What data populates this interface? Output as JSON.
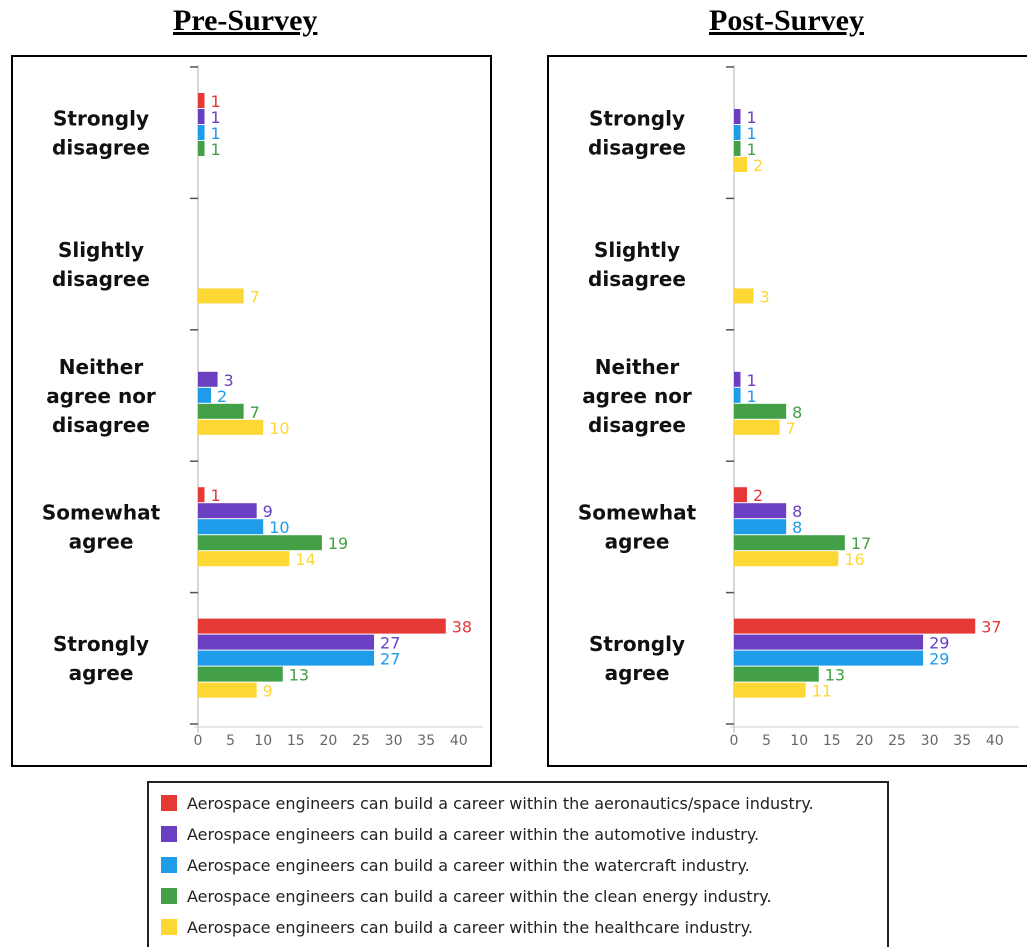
{
  "titles": {
    "pre": "Pre-Survey",
    "post": "Post-Survey"
  },
  "colors": [
    "#e53935",
    "#6a3fc1",
    "#1e9be9",
    "#43a047",
    "#fdd835"
  ],
  "legend": [
    "Aerospace engineers can build a career within the aeronautics/space industry.",
    "Aerospace engineers can build a career within the automotive industry.",
    "Aerospace engineers can build a career within the watercraft industry.",
    "Aerospace engineers can build a career within the clean energy industry.",
    "Aerospace engineers can build a career within the healthcare industry."
  ],
  "chart_data": [
    {
      "type": "bar",
      "orientation": "horizontal",
      "title": "Pre-Survey",
      "categories": [
        [
          "Strongly",
          "disagree"
        ],
        [
          "Slightly",
          "disagree"
        ],
        [
          "Neither",
          "agree nor",
          "disagree"
        ],
        [
          "Somewhat",
          "agree"
        ],
        [
          "Strongly",
          "agree"
        ]
      ],
      "xticks": [
        0,
        5,
        10,
        15,
        20,
        25,
        30,
        35,
        40
      ],
      "xlim": [
        0,
        40
      ],
      "series": [
        {
          "name": "Aerospace engineers can build a career within the aeronautics/space industry.",
          "values": [
            1,
            null,
            null,
            1,
            38
          ]
        },
        {
          "name": "Aerospace engineers can build a career within the automotive industry.",
          "values": [
            1,
            null,
            3,
            9,
            27
          ]
        },
        {
          "name": "Aerospace engineers can build a career within the watercraft industry.",
          "values": [
            1,
            null,
            2,
            10,
            27
          ]
        },
        {
          "name": "Aerospace engineers can build a career within the clean energy industry.",
          "values": [
            1,
            null,
            7,
            19,
            13
          ]
        },
        {
          "name": "Aerospace engineers can build a career within the healthcare industry.",
          "values": [
            null,
            7,
            10,
            14,
            9
          ]
        }
      ]
    },
    {
      "type": "bar",
      "orientation": "horizontal",
      "title": "Post-Survey",
      "categories": [
        [
          "Strongly",
          "disagree"
        ],
        [
          "Slightly",
          "disagree"
        ],
        [
          "Neither",
          "agree nor",
          "disagree"
        ],
        [
          "Somewhat",
          "agree"
        ],
        [
          "Strongly",
          "agree"
        ]
      ],
      "xticks": [
        0,
        5,
        10,
        15,
        20,
        25,
        30,
        35,
        40
      ],
      "xlim": [
        0,
        40
      ],
      "series": [
        {
          "name": "Aerospace engineers can build a career within the aeronautics/space industry.",
          "values": [
            null,
            null,
            null,
            2,
            37
          ]
        },
        {
          "name": "Aerospace engineers can build a career within the automotive industry.",
          "values": [
            1,
            null,
            1,
            8,
            29
          ]
        },
        {
          "name": "Aerospace engineers can build a career within the watercraft industry.",
          "values": [
            1,
            null,
            1,
            8,
            29
          ]
        },
        {
          "name": "Aerospace engineers can build a career within the clean energy industry.",
          "values": [
            1,
            null,
            8,
            17,
            13
          ]
        },
        {
          "name": "Aerospace engineers can build a career within the healthcare industry.",
          "values": [
            2,
            3,
            7,
            16,
            11
          ]
        }
      ]
    }
  ]
}
